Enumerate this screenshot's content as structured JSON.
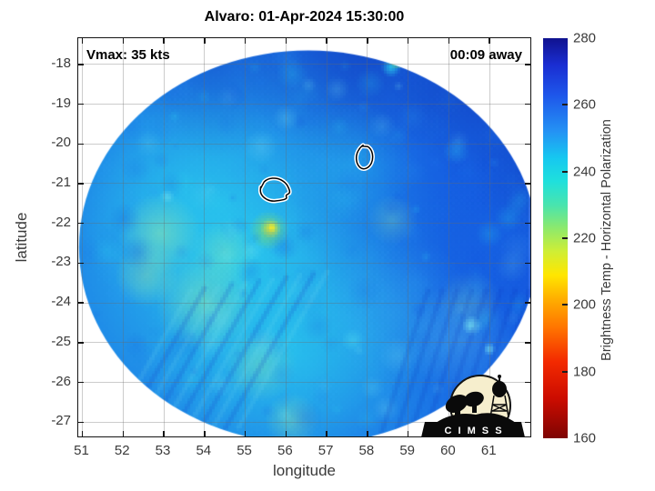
{
  "chart_data": {
    "type": "heatmap",
    "title": "Alvaro: 01-Apr-2024 15:30:00",
    "xlabel": "longitude",
    "ylabel": "latitude",
    "xlim": [
      50.9,
      62.0
    ],
    "ylim": [
      -27.36,
      -17.34
    ],
    "xticks": [
      51,
      52,
      53,
      54,
      55,
      56,
      57,
      58,
      59,
      60,
      61
    ],
    "yticks": [
      -18,
      -19,
      -20,
      -21,
      -22,
      -23,
      -24,
      -25,
      -26,
      -27
    ],
    "grid": true,
    "annotations": [
      {
        "text": "Vmax: 35 kts",
        "position": "top-left"
      },
      {
        "text": "00:09 away",
        "position": "top-right"
      }
    ],
    "swath": {
      "description": "circular microwave brightness-temperature swath, mostly 235-260 K (cyan to blue)",
      "center_lon": 56.55,
      "center_lat": -22.6,
      "radius_lon_deg": 5.63,
      "radius_lat_deg": 4.95,
      "contour_features": [
        {
          "name": "storm-center-contour",
          "lon": 57.92,
          "lat": -20.33
        },
        {
          "name": "storm-center-contour",
          "lon": 55.72,
          "lat": -21.15
        }
      ],
      "warm_spot": {
        "lon": 55.63,
        "lat": -22.13
      }
    },
    "colorbar": {
      "label": "Brightness Temp - Horizontal Polarization",
      "min": 160,
      "max": 280,
      "ticks": [
        160,
        180,
        200,
        220,
        240,
        260,
        280
      ],
      "stops": [
        {
          "value": 160,
          "color": "#7e0403"
        },
        {
          "value": 172,
          "color": "#cc0c00"
        },
        {
          "value": 183,
          "color": "#f32a00"
        },
        {
          "value": 193,
          "color": "#ff7300"
        },
        {
          "value": 202,
          "color": "#ffb000"
        },
        {
          "value": 209,
          "color": "#ffe600"
        },
        {
          "value": 216,
          "color": "#cfee35"
        },
        {
          "value": 223,
          "color": "#8de96c"
        },
        {
          "value": 230,
          "color": "#49e4ae"
        },
        {
          "value": 237,
          "color": "#1fe0dc"
        },
        {
          "value": 244,
          "color": "#16c8f0"
        },
        {
          "value": 252,
          "color": "#2492f4"
        },
        {
          "value": 263,
          "color": "#1e56ea"
        },
        {
          "value": 272,
          "color": "#1a2ed2"
        },
        {
          "value": 280,
          "color": "#10128f"
        }
      ]
    },
    "palette": {
      "base_blue": "#1b74e6",
      "cyan": "#2bd2ee",
      "light_cyan": "#7ce9f2",
      "pale_green": "#8fe8af",
      "yellow": "#e8e232",
      "navy": "#0e2cb4",
      "deep_blue": "#1150de"
    }
  },
  "logo": {
    "name": "CIMSS",
    "banner_text": "C I M S S"
  }
}
